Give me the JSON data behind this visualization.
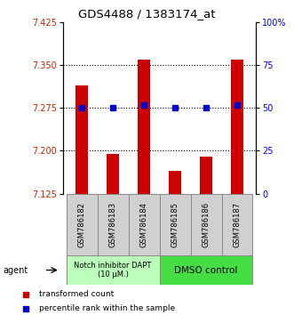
{
  "title": "GDS4488 / 1383174_at",
  "samples": [
    "GSM786182",
    "GSM786183",
    "GSM786184",
    "GSM786185",
    "GSM786186",
    "GSM786187"
  ],
  "bar_values": [
    7.315,
    7.195,
    7.36,
    7.165,
    7.19,
    7.36
  ],
  "percentile_values": [
    7.275,
    7.275,
    7.28,
    7.275,
    7.275,
    7.28
  ],
  "ylim_left": [
    7.125,
    7.425
  ],
  "yticks_left": [
    7.125,
    7.2,
    7.275,
    7.35,
    7.425
  ],
  "yticks_right": [
    0,
    25,
    50,
    75,
    100
  ],
  "ytick_right_labels": [
    "0",
    "25",
    "50",
    "75",
    "100%"
  ],
  "bar_color": "#cc0000",
  "percentile_color": "#0000cc",
  "group1_label": "Notch inhibitor DAPT\n(10 μM.)",
  "group2_label": "DMSO control",
  "group1_color": "#bbffbb",
  "group2_color": "#44dd44",
  "legend_bar_label": "transformed count",
  "legend_pct_label": "percentile rank within the sample",
  "agent_label": "agent",
  "gridline_y": [
    7.2,
    7.275,
    7.35
  ],
  "bar_width": 0.4
}
